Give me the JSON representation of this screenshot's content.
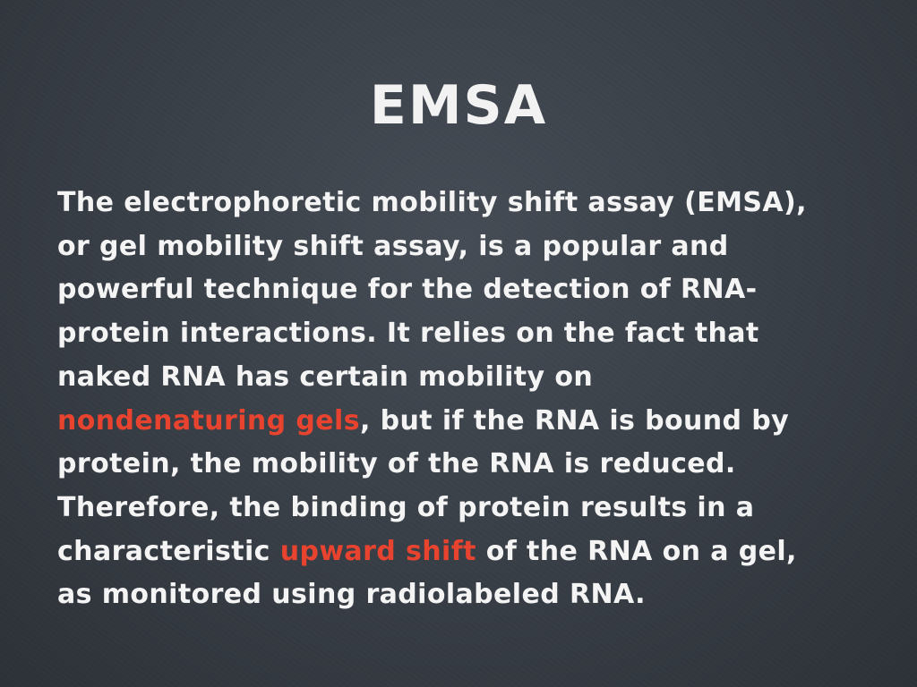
{
  "slide": {
    "title": "EMSA",
    "highlight_color": "#e8432f",
    "text_color": "#f4f4f4",
    "background_color": "#3a4048",
    "lines": [
      [
        "The electrophoretic mobility shift assay (EMSA),"
      ],
      [
        "or gel mobility shift assay, is a popular and"
      ],
      [
        "powerful technique for the detection of RNA-"
      ],
      [
        "protein interactions. It relies on the fact that"
      ],
      [
        "naked RNA has certain mobility on"
      ],
      [
        "nondenaturing gels",
        ", but if the RNA is bound by"
      ],
      [
        "protein, the mobility of the RNA is reduced."
      ],
      [
        "Therefore, the binding of protein results in a"
      ],
      [
        "characteristic ",
        "upward shift",
        " of the RNA on a gel,"
      ],
      [
        "as monitored using radiolabeled RNA."
      ]
    ]
  }
}
